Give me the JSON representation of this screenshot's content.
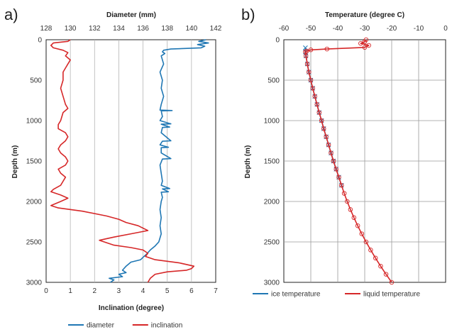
{
  "chart_data": [
    {
      "panel_label": "a)",
      "type": "line",
      "title": "Diameter (mm)",
      "xlabel": "Inclination (degree)",
      "ylabel": "Depth (m)",
      "y_axis": {
        "label": "Depth (m)",
        "range": [
          3000,
          0
        ],
        "inverted": true,
        "ticks": [
          "0",
          "500",
          "1000",
          "1500",
          "2000",
          "2500",
          "3000"
        ],
        "tick_values": [
          0,
          500,
          1000,
          1500,
          2000,
          2500,
          3000
        ]
      },
      "x_axis_bottom": {
        "label": "Inclination (degree)",
        "range": [
          0,
          7
        ],
        "ticks": [
          "0",
          "1",
          "2",
          "3",
          "4",
          "5",
          "6",
          "7"
        ],
        "tick_values": [
          0,
          1,
          2,
          3,
          4,
          5,
          6,
          7
        ]
      },
      "x_axis_top": {
        "label": "Diameter (mm)",
        "range": [
          128,
          142
        ],
        "ticks": [
          "128",
          "130",
          "132",
          "134",
          "136",
          "138",
          "140",
          "142"
        ],
        "tick_values": [
          128,
          130,
          132,
          134,
          136,
          138,
          140,
          142
        ]
      },
      "grid": "vertical",
      "legend_position": "bottom",
      "series": [
        {
          "name": "diameter",
          "color": "#1f77b4",
          "axis": "top",
          "points": [
            [
              141.2,
              0
            ],
            [
              140.6,
              20
            ],
            [
              141.4,
              40
            ],
            [
              140.5,
              60
            ],
            [
              141.1,
              80
            ],
            [
              140.8,
              100
            ],
            [
              138.3,
              115
            ],
            [
              137.7,
              130
            ],
            [
              137.6,
              150
            ],
            [
              137.8,
              170
            ],
            [
              137.5,
              200
            ],
            [
              137.7,
              300
            ],
            [
              137.4,
              400
            ],
            [
              137.6,
              500
            ],
            [
              137.5,
              600
            ],
            [
              137.7,
              700
            ],
            [
              137.5,
              800
            ],
            [
              137.4,
              870
            ],
            [
              138.4,
              875
            ],
            [
              137.5,
              880
            ],
            [
              137.6,
              950
            ],
            [
              137.4,
              1000
            ],
            [
              138.3,
              1040
            ],
            [
              137.5,
              1045
            ],
            [
              138.2,
              1080
            ],
            [
              137.6,
              1085
            ],
            [
              137.5,
              1150
            ],
            [
              138.3,
              1250
            ],
            [
              137.6,
              1255
            ],
            [
              137.4,
              1300
            ],
            [
              138.1,
              1330
            ],
            [
              137.5,
              1335
            ],
            [
              137.5,
              1400
            ],
            [
              138.3,
              1470
            ],
            [
              137.6,
              1475
            ],
            [
              137.4,
              1550
            ],
            [
              137.5,
              1650
            ],
            [
              137.6,
              1750
            ],
            [
              137.5,
              1800
            ],
            [
              138.2,
              1840
            ],
            [
              137.6,
              1845
            ],
            [
              138.1,
              1880
            ],
            [
              137.5,
              1885
            ],
            [
              137.6,
              1950
            ],
            [
              137.5,
              2000
            ],
            [
              137.4,
              2100
            ],
            [
              137.5,
              2200
            ],
            [
              137.4,
              2300
            ],
            [
              137.5,
              2400
            ],
            [
              137.3,
              2500
            ],
            [
              137.0,
              2550
            ],
            [
              136.6,
              2600
            ],
            [
              136.3,
              2650
            ],
            [
              136.0,
              2690
            ],
            [
              135.8,
              2720
            ],
            [
              135.0,
              2750
            ],
            [
              134.6,
              2800
            ],
            [
              134.3,
              2850
            ],
            [
              134.6,
              2880
            ],
            [
              134.0,
              2900
            ],
            [
              134.3,
              2930
            ],
            [
              133.2,
              2950
            ],
            [
              133.6,
              2970
            ],
            [
              133.3,
              3000
            ]
          ]
        },
        {
          "name": "inclination",
          "color": "#d62728",
          "axis": "bottom",
          "points": [
            [
              1.0,
              0
            ],
            [
              0.9,
              20
            ],
            [
              0.3,
              40
            ],
            [
              0.2,
              70
            ],
            [
              0.3,
              100
            ],
            [
              0.7,
              130
            ],
            [
              0.9,
              160
            ],
            [
              0.8,
              200
            ],
            [
              1.0,
              250
            ],
            [
              0.9,
              300
            ],
            [
              0.8,
              350
            ],
            [
              0.7,
              400
            ],
            [
              0.7,
              500
            ],
            [
              0.6,
              600
            ],
            [
              0.7,
              700
            ],
            [
              0.8,
              800
            ],
            [
              0.9,
              850
            ],
            [
              0.7,
              900
            ],
            [
              0.6,
              1000
            ],
            [
              0.5,
              1050
            ],
            [
              0.5,
              1100
            ],
            [
              0.8,
              1150
            ],
            [
              0.9,
              1200
            ],
            [
              0.8,
              1250
            ],
            [
              0.6,
              1300
            ],
            [
              0.5,
              1350
            ],
            [
              0.6,
              1400
            ],
            [
              0.8,
              1450
            ],
            [
              0.9,
              1500
            ],
            [
              0.8,
              1550
            ],
            [
              0.5,
              1600
            ],
            [
              0.6,
              1650
            ],
            [
              0.8,
              1700
            ],
            [
              0.7,
              1750
            ],
            [
              0.6,
              1800
            ],
            [
              0.3,
              1850
            ],
            [
              0.2,
              1880
            ],
            [
              0.6,
              1920
            ],
            [
              0.9,
              1960
            ],
            [
              0.6,
              2000
            ],
            [
              0.2,
              2050
            ],
            [
              0.5,
              2080
            ],
            [
              1.5,
              2120
            ],
            [
              2.5,
              2180
            ],
            [
              3.0,
              2220
            ],
            [
              3.3,
              2260
            ],
            [
              3.8,
              2300
            ],
            [
              4.2,
              2360
            ],
            [
              3.5,
              2400
            ],
            [
              2.8,
              2440
            ],
            [
              2.2,
              2480
            ],
            [
              2.8,
              2540
            ],
            [
              3.5,
              2570
            ],
            [
              4.0,
              2600
            ],
            [
              4.2,
              2640
            ],
            [
              4.1,
              2680
            ],
            [
              4.5,
              2720
            ],
            [
              5.5,
              2760
            ],
            [
              6.1,
              2800
            ],
            [
              6.0,
              2830
            ],
            [
              5.8,
              2850
            ],
            [
              5.0,
              2870
            ],
            [
              4.5,
              2900
            ],
            [
              4.3,
              2950
            ],
            [
              4.2,
              3000
            ]
          ]
        }
      ]
    },
    {
      "panel_label": "b)",
      "type": "line",
      "title": "Temperature (degree C)",
      "xlabel": "Temperature (degree C)",
      "ylabel": "Depth (m)",
      "y_axis": {
        "label": "Depth (m)",
        "range": [
          3000,
          0
        ],
        "inverted": true,
        "ticks": [
          "0",
          "500",
          "1000",
          "1500",
          "2000",
          "2500",
          "3000"
        ],
        "tick_values": [
          0,
          500,
          1000,
          1500,
          2000,
          2500,
          3000
        ]
      },
      "x_axis_top": {
        "label": "Temperature (degree C)",
        "range": [
          -60,
          0
        ],
        "ticks": [
          "-60",
          "-50",
          "-40",
          "-30",
          "-20",
          "-10",
          "0"
        ],
        "tick_values": [
          -60,
          -50,
          -40,
          -30,
          -20,
          -10,
          0
        ]
      },
      "grid": "both",
      "legend_position": "bottom",
      "series": [
        {
          "name": "ice temperature",
          "color": "#1f77b4",
          "marker": "x",
          "points": [
            [
              -52.0,
              100
            ],
            [
              -52.0,
              150
            ],
            [
              -51.8,
              200
            ],
            [
              -51.3,
              300
            ],
            [
              -50.7,
              400
            ],
            [
              -50.0,
              500
            ],
            [
              -49.3,
              600
            ],
            [
              -48.5,
              700
            ],
            [
              -47.7,
              800
            ],
            [
              -46.9,
              900
            ],
            [
              -46.0,
              1000
            ],
            [
              -45.2,
              1100
            ],
            [
              -44.3,
              1200
            ],
            [
              -43.4,
              1300
            ],
            [
              -42.5,
              1400
            ],
            [
              -41.6,
              1500
            ],
            [
              -40.6,
              1600
            ],
            [
              -39.6,
              1700
            ],
            [
              -38.6,
              1800
            ]
          ]
        },
        {
          "name": "liquid temperature",
          "color": "#d62728",
          "marker": "o",
          "points": [
            [
              -29.5,
              0
            ],
            [
              -30.0,
              25
            ],
            [
              -31.5,
              45
            ],
            [
              -28.5,
              70
            ],
            [
              -30.0,
              95
            ],
            [
              -44.0,
              115
            ],
            [
              -50.0,
              125
            ],
            [
              -51.5,
              140
            ],
            [
              -52.0,
              150
            ],
            [
              -51.8,
              200
            ],
            [
              -51.3,
              300
            ],
            [
              -50.7,
              400
            ],
            [
              -50.0,
              500
            ],
            [
              -49.3,
              600
            ],
            [
              -48.5,
              700
            ],
            [
              -47.7,
              800
            ],
            [
              -46.9,
              900
            ],
            [
              -46.0,
              1000
            ],
            [
              -45.2,
              1100
            ],
            [
              -44.3,
              1200
            ],
            [
              -43.4,
              1300
            ],
            [
              -42.5,
              1400
            ],
            [
              -41.6,
              1500
            ],
            [
              -40.6,
              1600
            ],
            [
              -39.6,
              1700
            ],
            [
              -38.6,
              1800
            ],
            [
              -37.6,
              1900
            ],
            [
              -36.5,
              2000
            ],
            [
              -35.3,
              2100
            ],
            [
              -34.0,
              2200
            ],
            [
              -32.6,
              2300
            ],
            [
              -31.1,
              2400
            ],
            [
              -29.5,
              2500
            ],
            [
              -27.8,
              2600
            ],
            [
              -26.0,
              2700
            ],
            [
              -24.1,
              2800
            ],
            [
              -22.1,
              2900
            ],
            [
              -20.0,
              3000
            ]
          ]
        }
      ]
    }
  ]
}
